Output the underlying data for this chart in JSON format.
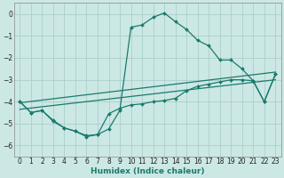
{
  "xlabel": "Humidex (Indice chaleur)",
  "xlim": [
    -0.5,
    23.5
  ],
  "ylim": [
    -6.5,
    0.5
  ],
  "xticks": [
    0,
    1,
    2,
    3,
    4,
    5,
    6,
    7,
    8,
    9,
    10,
    11,
    12,
    13,
    14,
    15,
    16,
    17,
    18,
    19,
    20,
    21,
    22,
    23
  ],
  "yticks": [
    0,
    -1,
    -2,
    -3,
    -4,
    -5,
    -6
  ],
  "bg_color": "#cce8e4",
  "grid_color": "#aacfcb",
  "line_color": "#1a7a6e",
  "curve1_x": [
    0,
    1,
    2,
    3,
    4,
    5,
    6,
    7,
    8,
    9,
    10,
    11,
    12,
    13,
    14,
    15,
    16,
    17,
    18,
    19,
    20,
    21,
    22,
    23
  ],
  "curve1_y": [
    -4.0,
    -4.5,
    -4.4,
    -4.9,
    -5.2,
    -5.35,
    -5.6,
    -5.5,
    -5.25,
    -4.4,
    -0.6,
    -0.5,
    -0.15,
    0.05,
    -0.35,
    -0.7,
    -1.2,
    -1.45,
    -2.1,
    -2.1,
    -2.5,
    -3.05,
    -4.0,
    -2.75
  ],
  "curve2_x": [
    0,
    1,
    2,
    3,
    4,
    5,
    6,
    7,
    8,
    9,
    10,
    11,
    12,
    13,
    14,
    15,
    16,
    17,
    18,
    19,
    20,
    21,
    22,
    23
  ],
  "curve2_y": [
    -4.0,
    -4.5,
    -4.4,
    -4.85,
    -5.2,
    -5.35,
    -5.55,
    -5.5,
    -4.55,
    -4.3,
    -4.15,
    -4.1,
    -4.0,
    -3.95,
    -3.85,
    -3.5,
    -3.3,
    -3.2,
    -3.1,
    -3.0,
    -3.0,
    -3.05,
    -4.0,
    -2.75
  ],
  "line1_x": [
    0,
    23
  ],
  "line1_y": [
    -4.05,
    -2.65
  ],
  "line2_x": [
    0,
    23
  ],
  "line2_y": [
    -4.35,
    -3.0
  ]
}
